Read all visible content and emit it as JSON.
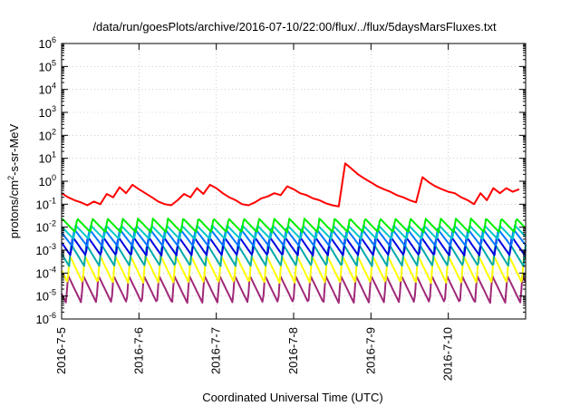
{
  "chart_data": {
    "type": "line",
    "title": "/data/run/goesPlots/archive/2016-07-10/22:00/flux/../flux/5daysMarsFluxes.txt",
    "xlabel": "Coordinated Universal Time (UTC)",
    "ylabel_prefix": "protons/cm",
    "ylabel_sup": "2",
    "ylabel_suffix": "-s-sr-MeV",
    "y_scale": "log",
    "ylim": [
      1e-06,
      1000000.0
    ],
    "xlim": [
      "2016-07-05",
      "2016-07-11"
    ],
    "grid": true,
    "x_ticks": [
      "2016-7-5",
      "2016-7-6",
      "2016-7-7",
      "2016-7-8",
      "2016-7-9",
      "2016-7-10"
    ],
    "y_ticks": [
      {
        "base": "10",
        "exp": "6"
      },
      {
        "base": "10",
        "exp": "5"
      },
      {
        "base": "10",
        "exp": "4"
      },
      {
        "base": "10",
        "exp": "3"
      },
      {
        "base": "10",
        "exp": "2"
      },
      {
        "base": "10",
        "exp": "1"
      },
      {
        "base": "10",
        "exp": "0"
      },
      {
        "base": "10",
        "exp": "-1"
      },
      {
        "base": "10",
        "exp": "-2"
      },
      {
        "base": "10",
        "exp": "-3"
      },
      {
        "base": "10",
        "exp": "-4"
      },
      {
        "base": "10",
        "exp": "-5"
      },
      {
        "base": "10",
        "exp": "-6"
      }
    ],
    "series": [
      {
        "color": "#ff0000",
        "x": [
          "2016-07-05 00:00",
          "2016-07-05 02:00",
          "2016-07-05 04:00",
          "2016-07-05 06:00",
          "2016-07-05 08:00",
          "2016-07-05 10:00",
          "2016-07-05 12:00",
          "2016-07-05 14:00",
          "2016-07-05 16:00",
          "2016-07-05 18:00",
          "2016-07-05 20:00",
          "2016-07-05 22:00",
          "2016-07-06 00:00",
          "2016-07-06 02:00",
          "2016-07-06 04:00",
          "2016-07-06 06:00",
          "2016-07-06 08:00",
          "2016-07-06 10:00",
          "2016-07-06 12:00",
          "2016-07-06 14:00",
          "2016-07-06 16:00",
          "2016-07-06 18:00",
          "2016-07-06 20:00",
          "2016-07-06 22:00",
          "2016-07-07 00:00",
          "2016-07-07 02:00",
          "2016-07-07 04:00",
          "2016-07-07 06:00",
          "2016-07-07 08:00",
          "2016-07-07 10:00",
          "2016-07-07 12:00",
          "2016-07-07 14:00",
          "2016-07-07 16:00",
          "2016-07-07 18:00",
          "2016-07-07 20:00",
          "2016-07-07 22:00",
          "2016-07-08 00:00",
          "2016-07-08 02:00",
          "2016-07-08 04:00",
          "2016-07-08 06:00",
          "2016-07-08 08:00",
          "2016-07-08 10:00",
          "2016-07-08 12:00",
          "2016-07-08 14:00",
          "2016-07-08 16:00",
          "2016-07-08 18:00",
          "2016-07-08 20:00",
          "2016-07-08 22:00",
          "2016-07-09 00:00",
          "2016-07-09 02:00",
          "2016-07-09 04:00",
          "2016-07-09 06:00",
          "2016-07-09 08:00",
          "2016-07-09 10:00",
          "2016-07-09 12:00",
          "2016-07-09 14:00",
          "2016-07-09 16:00",
          "2016-07-09 18:00",
          "2016-07-09 20:00",
          "2016-07-09 22:00",
          "2016-07-10 00:00",
          "2016-07-10 02:00",
          "2016-07-10 04:00",
          "2016-07-10 06:00",
          "2016-07-10 08:00",
          "2016-07-10 10:00",
          "2016-07-10 12:00",
          "2016-07-10 14:00",
          "2016-07-10 16:00",
          "2016-07-10 18:00",
          "2016-07-10 20:00",
          "2016-07-10 22:00"
        ],
        "y": [
          0.3,
          0.2,
          0.15,
          0.12,
          0.09,
          0.13,
          0.1,
          0.28,
          0.2,
          0.55,
          0.3,
          0.7,
          0.45,
          0.3,
          0.2,
          0.13,
          0.1,
          0.09,
          0.15,
          0.28,
          0.2,
          0.5,
          0.28,
          0.7,
          0.5,
          0.3,
          0.2,
          0.15,
          0.1,
          0.09,
          0.12,
          0.18,
          0.22,
          0.3,
          0.25,
          0.6,
          0.45,
          0.3,
          0.25,
          0.18,
          0.15,
          0.11,
          0.09,
          0.08,
          6.0,
          3.5,
          2.0,
          1.3,
          0.9,
          0.6,
          0.45,
          0.35,
          0.25,
          0.2,
          0.15,
          0.12,
          1.5,
          0.9,
          0.6,
          0.45,
          0.35,
          0.3,
          0.2,
          0.15,
          0.1,
          0.3,
          0.15,
          0.5,
          0.3,
          0.5,
          0.35,
          0.45
        ]
      },
      {
        "color": "#00ee00",
        "base": 0.012,
        "amp": 2.0,
        "period_hours": 4.7,
        "phase": 0.1
      },
      {
        "color": "#00c8c8",
        "base": 0.006,
        "amp": 2.0,
        "period_hours": 4.7,
        "phase": 0.2
      },
      {
        "color": "#0078ff",
        "base": 0.0035,
        "amp": 2.4,
        "period_hours": 4.7,
        "phase": 0.3
      },
      {
        "color": "#0000e0",
        "base": 0.0015,
        "amp": 2.6,
        "period_hours": 4.7,
        "phase": 0.4
      },
      {
        "color": "#00aaaa",
        "base": 0.0006,
        "amp": 3.0,
        "period_hours": 4.7,
        "phase": 0.5
      },
      {
        "color": "#ffff00",
        "base": 0.00015,
        "amp": 4.0,
        "period_hours": 4.7,
        "phase": 0.6
      },
      {
        "color": "#a02878",
        "base": 2e-05,
        "amp": 4.0,
        "period_hours": 4.7,
        "phase": 0.7
      }
    ]
  }
}
